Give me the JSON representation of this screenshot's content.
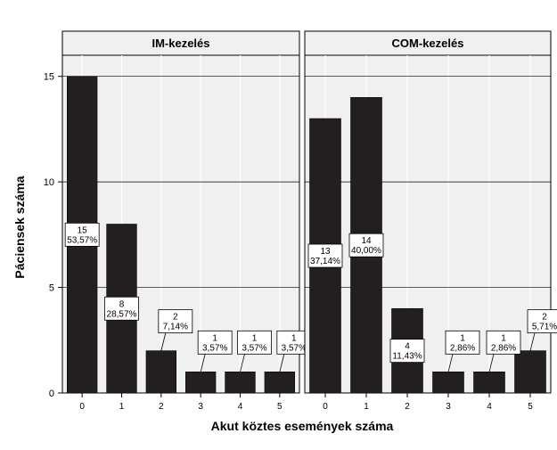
{
  "chart_data": {
    "type": "bar",
    "xlabel": "Akut köztes események száma",
    "ylabel": "Páciensek száma",
    "ylim": [
      0,
      16
    ],
    "yticks": [
      0,
      5,
      10,
      15
    ],
    "grid": true,
    "categories": [
      "0",
      "1",
      "2",
      "3",
      "4",
      "5"
    ],
    "bar_color": "#231f20",
    "panel_header_color": "#f0f0f0",
    "panel_background": "#f0f0f0",
    "panels": [
      {
        "title": "IM-kezelés",
        "values": [
          15,
          8,
          2,
          1,
          1,
          1
        ],
        "count_labels": [
          "15",
          "8",
          "2",
          "1",
          "1",
          "1"
        ],
        "percent_labels": [
          "53,57%",
          "28,57%",
          "7,14%",
          "3,57%",
          "3,57%",
          "3,57%"
        ]
      },
      {
        "title": "COM-kezelés",
        "values": [
          13,
          14,
          4,
          1,
          1,
          2
        ],
        "count_labels": [
          "13",
          "14",
          "4",
          "1",
          "1",
          "2"
        ],
        "percent_labels": [
          "37,14%",
          "40,00%",
          "11,43%",
          "2,86%",
          "2,86%",
          "5,71%"
        ]
      }
    ]
  }
}
